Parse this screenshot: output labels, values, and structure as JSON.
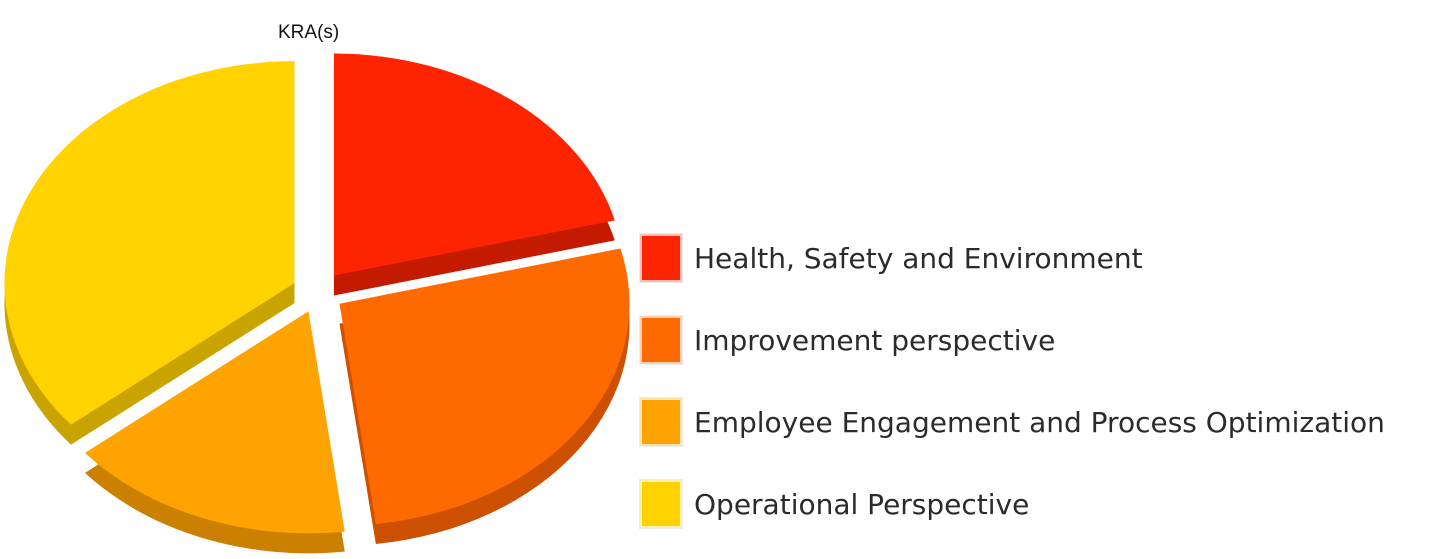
{
  "chart_data": {
    "type": "pie",
    "title": "KRA(s)",
    "categories": [
      "Health, Safety and Environment",
      "Improvement perspective",
      "Employee Engagement and Process Optimization",
      "Operational Perspective"
    ],
    "values": [
      21,
      27,
      16,
      36
    ],
    "colors": [
      "#ff2400",
      "#ff6a00",
      "#ffa300",
      "#ffd200"
    ],
    "side_colors": [
      "#c41a00",
      "#cc5000",
      "#cc8000",
      "#c9a400"
    ],
    "style": "3d-exploded",
    "legend_position": "right",
    "data_labels": false
  }
}
